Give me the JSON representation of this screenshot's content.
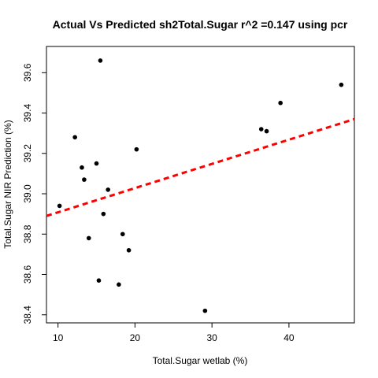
{
  "chart_data": {
    "type": "scatter",
    "title": "Actual Vs Predicted sh2Total.Sugar r^2 =0.147 using pcr",
    "xlabel": "Total.Sugar wetlab (%)",
    "ylabel": "Total.Sugar NIR Prediction (%)",
    "xlim": [
      8.5,
      48.5
    ],
    "ylim": [
      38.36,
      39.73
    ],
    "x_ticks": [
      10,
      20,
      30,
      40
    ],
    "y_ticks": [
      38.4,
      38.6,
      38.8,
      39.0,
      39.2,
      39.4,
      39.6
    ],
    "x_tick_labels": [
      "10",
      "20",
      "30",
      "40"
    ],
    "y_tick_labels": [
      "38.4",
      "38.6",
      "38.8",
      "39.0",
      "39.2",
      "39.4",
      "39.6"
    ],
    "points": [
      {
        "x": 10.2,
        "y": 38.94
      },
      {
        "x": 12.2,
        "y": 39.28
      },
      {
        "x": 13.1,
        "y": 39.13
      },
      {
        "x": 13.4,
        "y": 39.07
      },
      {
        "x": 14.0,
        "y": 38.78
      },
      {
        "x": 15.0,
        "y": 39.15
      },
      {
        "x": 15.3,
        "y": 38.57
      },
      {
        "x": 15.5,
        "y": 39.66
      },
      {
        "x": 15.9,
        "y": 38.9
      },
      {
        "x": 16.5,
        "y": 39.02
      },
      {
        "x": 17.9,
        "y": 38.55
      },
      {
        "x": 18.4,
        "y": 38.8
      },
      {
        "x": 19.2,
        "y": 38.72
      },
      {
        "x": 20.2,
        "y": 39.22
      },
      {
        "x": 29.1,
        "y": 38.42
      },
      {
        "x": 36.4,
        "y": 39.32
      },
      {
        "x": 37.1,
        "y": 39.31
      },
      {
        "x": 38.9,
        "y": 39.45
      },
      {
        "x": 46.8,
        "y": 39.54
      }
    ],
    "fit_line": {
      "x": [
        8.5,
        48.5
      ],
      "y": [
        38.89,
        39.37
      ],
      "color": "#ff0000",
      "style": "dashed"
    },
    "point_color": "#000000",
    "grid": false
  }
}
